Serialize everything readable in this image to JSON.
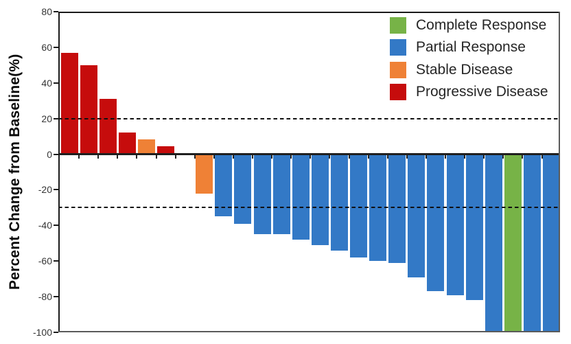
{
  "chart_data": {
    "type": "bar",
    "title": "",
    "xlabel": "",
    "ylabel": "Percent Change from Baseline(%)",
    "ylim": [
      -100,
      80
    ],
    "y_ticks": [
      80,
      60,
      40,
      20,
      0,
      -20,
      -40,
      -60,
      -80,
      -100
    ],
    "grid": false,
    "legend_position": "top-right",
    "empty_slot_index": 6,
    "total_slots": 26,
    "reference_lines": [
      {
        "y": 20,
        "style": "dashed"
      },
      {
        "y": -30,
        "style": "dashed"
      }
    ],
    "series_colors": {
      "Complete Response": "#77B347",
      "Partial Response": "#3379C6",
      "Stable Disease": "#EF8136",
      "Progressive Disease": "#C60C0C"
    },
    "bars": [
      {
        "value": 57,
        "response": "Progressive Disease"
      },
      {
        "value": 50,
        "response": "Progressive Disease"
      },
      {
        "value": 31,
        "response": "Progressive Disease"
      },
      {
        "value": 12,
        "response": "Progressive Disease"
      },
      {
        "value": 8.5,
        "response": "Stable Disease"
      },
      {
        "value": 4.5,
        "response": "Progressive Disease"
      },
      {
        "value": -22,
        "response": "Stable Disease"
      },
      {
        "value": -35,
        "response": "Partial Response"
      },
      {
        "value": -39,
        "response": "Partial Response"
      },
      {
        "value": -45,
        "response": "Partial Response"
      },
      {
        "value": -45,
        "response": "Partial Response"
      },
      {
        "value": -48,
        "response": "Partial Response"
      },
      {
        "value": -51,
        "response": "Partial Response"
      },
      {
        "value": -54,
        "response": "Partial Response"
      },
      {
        "value": -58,
        "response": "Partial Response"
      },
      {
        "value": -60,
        "response": "Partial Response"
      },
      {
        "value": -61,
        "response": "Partial Response"
      },
      {
        "value": -69,
        "response": "Partial Response"
      },
      {
        "value": -77,
        "response": "Partial Response"
      },
      {
        "value": -79,
        "response": "Partial Response"
      },
      {
        "value": -82,
        "response": "Partial Response"
      },
      {
        "value": -100,
        "response": "Partial Response"
      },
      {
        "value": -100,
        "response": "Complete Response"
      },
      {
        "value": -100,
        "response": "Partial Response"
      },
      {
        "value": -100,
        "response": "Partial Response"
      }
    ]
  },
  "legend": {
    "items": [
      {
        "label": "Complete Response",
        "color": "#77B347"
      },
      {
        "label": "Partial Response",
        "color": "#3379C6"
      },
      {
        "label": "Stable Disease",
        "color": "#EF8136"
      },
      {
        "label": "Progressive Disease",
        "color": "#C60C0C"
      }
    ]
  },
  "axis_colors": {
    "top_left_border": "#1a1a1a",
    "bottom_right_border": "#5a5a5a",
    "tick_label": "#353535"
  }
}
